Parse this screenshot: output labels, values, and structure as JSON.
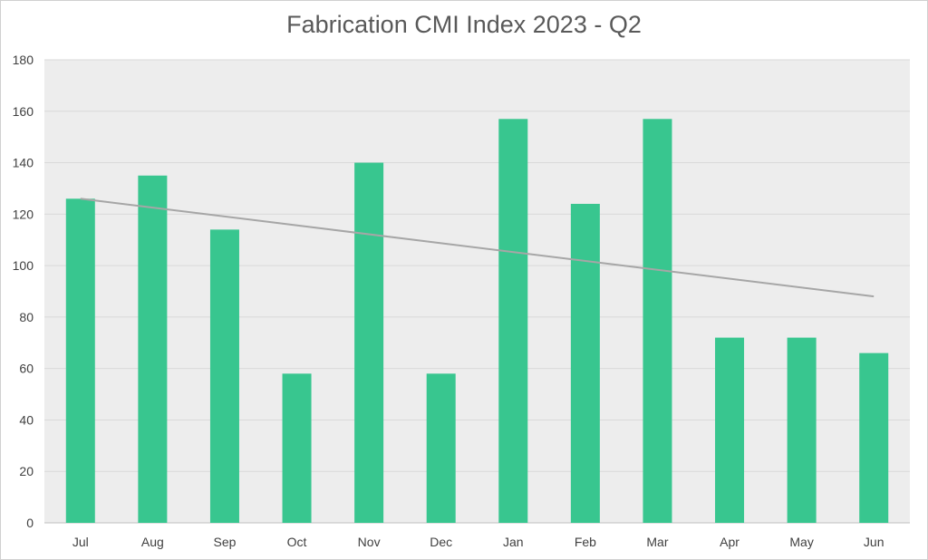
{
  "title": "Fabrication CMI Index 2023 - Q2",
  "colors": {
    "bar": "#38c68f",
    "trendline": "#a6a6a6",
    "plot_background": "#ededed",
    "gridline": "#d9d9d9"
  },
  "chart_data": {
    "type": "bar",
    "title": "Fabrication CMI Index 2023 - Q2",
    "xlabel": "",
    "ylabel": "",
    "categories": [
      "Jul",
      "Aug",
      "Sep",
      "Oct",
      "Nov",
      "Dec",
      "Jan",
      "Feb",
      "Mar",
      "Apr",
      "May",
      "Jun"
    ],
    "values": [
      126,
      135,
      114,
      58,
      140,
      58,
      157,
      124,
      157,
      72,
      72,
      66
    ],
    "ylim": [
      0,
      180
    ],
    "yticks": [
      0,
      20,
      40,
      60,
      80,
      100,
      120,
      140,
      160,
      180
    ],
    "grid": true,
    "legend": "none",
    "trendline": {
      "type": "linear",
      "start": 126,
      "end": 88
    }
  }
}
